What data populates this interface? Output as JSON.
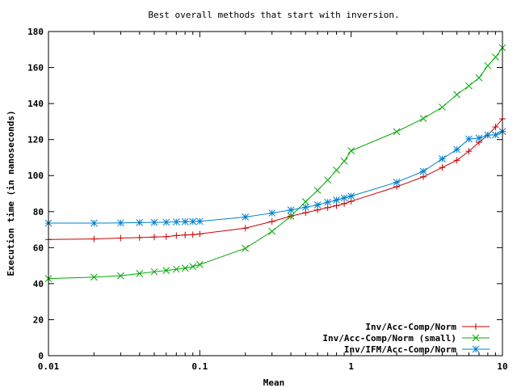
{
  "chart_data": {
    "type": "line",
    "title": "Best overall methods that start with inversion.",
    "xlabel": "Mean",
    "ylabel": "Execution time (in nanoseconds)",
    "xscale": "log",
    "xlim": [
      0.01,
      10
    ],
    "ylim": [
      0,
      180
    ],
    "xticks": [
      0.01,
      0.1,
      1,
      10
    ],
    "xtick_labels": [
      "0.01",
      "0.1",
      "1",
      "10"
    ],
    "yticks": [
      0,
      20,
      40,
      60,
      80,
      100,
      120,
      140,
      160,
      180
    ],
    "ytick_labels": [
      "0",
      "20",
      "40",
      "60",
      "80",
      "100",
      "120",
      "140",
      "160",
      "180"
    ],
    "grid": false,
    "legend_position": "bottom-right",
    "series": [
      {
        "name": "Inv/Acc-Comp/Norm",
        "color": "#cc0000",
        "marker": "plus",
        "x": [
          0.01,
          0.02,
          0.03,
          0.04,
          0.05,
          0.06,
          0.07,
          0.08,
          0.09,
          0.1,
          0.2,
          0.3,
          0.4,
          0.5,
          0.6,
          0.7,
          0.8,
          0.9,
          1,
          2,
          3,
          4,
          5,
          6,
          7,
          8,
          9,
          10
        ],
        "y": [
          64.5,
          64.8,
          65.3,
          65.6,
          65.9,
          66.1,
          66.7,
          67.0,
          67.2,
          67.6,
          70.8,
          74.5,
          77.5,
          79.4,
          80.9,
          82.2,
          83.3,
          84.4,
          85.7,
          93.8,
          99.3,
          104.5,
          108.5,
          113.5,
          118.5,
          122.5,
          127.0,
          131.5
        ]
      },
      {
        "name": "Inv/Acc-Comp/Norm (small)",
        "color": "#00aa00",
        "marker": "x",
        "x": [
          0.01,
          0.02,
          0.03,
          0.04,
          0.05,
          0.06,
          0.07,
          0.08,
          0.09,
          0.1,
          0.2,
          0.3,
          0.4,
          0.5,
          0.6,
          0.7,
          0.8,
          0.9,
          1,
          2,
          3,
          4,
          5,
          6,
          7,
          8,
          9,
          10
        ],
        "y": [
          42.8,
          43.6,
          44.4,
          45.6,
          46.6,
          47.3,
          48.0,
          48.6,
          49.5,
          50.6,
          59.6,
          69.0,
          77.5,
          85.5,
          91.8,
          97.5,
          103.0,
          108.0,
          113.8,
          124.4,
          131.7,
          138.0,
          145.0,
          149.8,
          154.3,
          161.0,
          165.8,
          171.0
        ]
      },
      {
        "name": "Inv/IFM/Acc-Comp/Norm",
        "color": "#0080cc",
        "marker": "star",
        "x": [
          0.01,
          0.02,
          0.03,
          0.04,
          0.05,
          0.06,
          0.07,
          0.08,
          0.09,
          0.1,
          0.2,
          0.3,
          0.4,
          0.5,
          0.6,
          0.7,
          0.8,
          0.9,
          1,
          2,
          3,
          4,
          5,
          6,
          7,
          8,
          9,
          10
        ],
        "y": [
          73.6,
          73.6,
          73.7,
          73.9,
          74.0,
          74.1,
          74.3,
          74.4,
          74.5,
          74.6,
          77.0,
          79.2,
          80.9,
          82.4,
          83.7,
          85.2,
          86.4,
          87.6,
          88.6,
          96.3,
          102.4,
          109.3,
          114.5,
          120.3,
          120.8,
          122.5,
          122.6,
          124.5
        ]
      }
    ]
  }
}
